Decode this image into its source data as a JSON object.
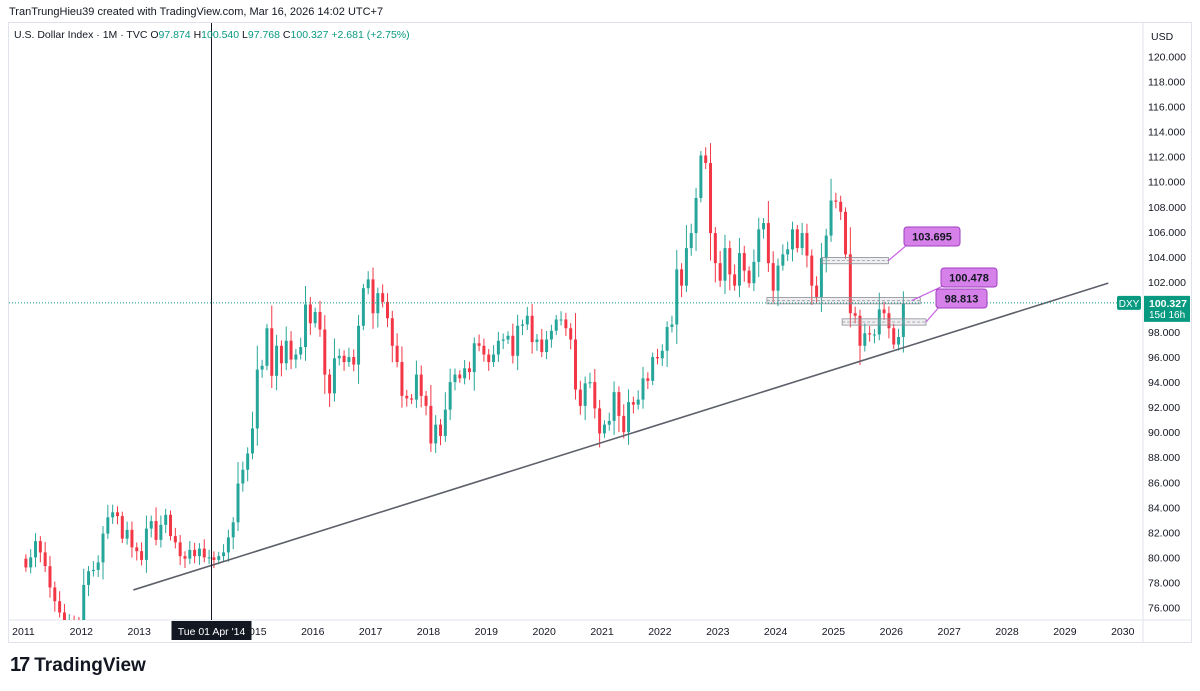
{
  "credit": "TranTrungHieu39 created with TradingView.com, Mar 16, 2026 14:02 UTC+7",
  "brand": "TradingView",
  "colors": {
    "up": "#26a69a",
    "down": "#f23645",
    "trendline": "#5d606b",
    "callout": "#c760e3",
    "last_price": "#089981"
  },
  "chart_data": {
    "type": "candlestick",
    "title": "U.S. Dollar Index · 1M · TVC",
    "ohlc": {
      "o_label": "O",
      "o": "97.874",
      "h_label": "H",
      "h": "100.540",
      "l_label": "L",
      "l": "97.768",
      "c_label": "C",
      "c": "100.327",
      "change": "+2.681 (+2.75%)"
    },
    "currency": "USD",
    "y_range": [
      75,
      121
    ],
    "y_ticks": [
      "76.000",
      "78.000",
      "80.000",
      "82.000",
      "84.000",
      "86.000",
      "88.000",
      "90.000",
      "92.000",
      "94.000",
      "96.000",
      "98.000",
      "100.000",
      "102.000",
      "104.000",
      "106.000",
      "108.000",
      "110.000",
      "112.000",
      "114.000",
      "116.000",
      "118.000",
      "120.000"
    ],
    "x_range": [
      2010.75,
      2030.35
    ],
    "x_ticks": [
      {
        "t": 2011,
        "label": "2011"
      },
      {
        "t": 2012,
        "label": "2012"
      },
      {
        "t": 2013,
        "label": "2013"
      },
      {
        "t": 2015,
        "label": "2015"
      },
      {
        "t": 2016,
        "label": "2016"
      },
      {
        "t": 2017,
        "label": "2017"
      },
      {
        "t": 2018,
        "label": "2018"
      },
      {
        "t": 2019,
        "label": "2019"
      },
      {
        "t": 2020,
        "label": "2020"
      },
      {
        "t": 2021,
        "label": "2021"
      },
      {
        "t": 2022,
        "label": "2022"
      },
      {
        "t": 2023,
        "label": "2023"
      },
      {
        "t": 2024,
        "label": "2024"
      },
      {
        "t": 2025,
        "label": "2025"
      },
      {
        "t": 2026,
        "label": "2026"
      },
      {
        "t": 2027,
        "label": "2027"
      },
      {
        "t": 2028,
        "label": "2028"
      },
      {
        "t": 2029,
        "label": "2029"
      },
      {
        "t": 2030,
        "label": "2030"
      }
    ],
    "crosshair": {
      "t": 2014.25,
      "label": "Tue 01 Apr '14"
    },
    "trendline": {
      "start": [
        2012.9,
        77.4
      ],
      "end": [
        2029.75,
        101.9
      ]
    },
    "last_price": {
      "symbol": "DXY",
      "value": 100.327,
      "label": "100.327",
      "countdown": "15d 16h"
    },
    "zones": [
      {
        "t0": 2024.8,
        "t1": 2025.95,
        "y0": 103.45,
        "y1": 103.95
      },
      {
        "t0": 2023.85,
        "t1": 2026.5,
        "y0": 100.25,
        "y1": 100.75
      },
      {
        "t0": 2025.15,
        "t1": 2026.6,
        "y0": 98.55,
        "y1": 99.05
      }
    ],
    "callouts": [
      {
        "label": "103.695",
        "value": 103.695,
        "anchor": [
          2025.95,
          103.7
        ]
      },
      {
        "label": "100.478",
        "value": 100.478,
        "anchor": [
          2026.35,
          100.5
        ]
      },
      {
        "label": "98.813",
        "value": 98.813,
        "anchor": [
          2026.6,
          98.8
        ]
      }
    ],
    "closes": [
      79.2,
      80.0,
      81.3,
      80.4,
      79.3,
      77.6,
      76.5,
      75.6,
      74.6,
      75.0,
      74.5,
      73.5,
      77.8,
      78.9,
      79.0,
      79.6,
      81.9,
      83.2,
      83.6,
      83.3,
      81.5,
      82.2,
      80.8,
      80.5,
      79.8,
      82.3,
      82.9,
      81.4,
      82.6,
      83.4,
      81.7,
      81.2,
      80.1,
      79.9,
      80.6,
      80.1,
      80.7,
      80.0,
      80.0,
      79.8,
      80.1,
      80.4,
      81.6,
      82.8,
      85.9,
      87.0,
      88.3,
      90.3,
      95.0,
      95.3,
      98.3,
      94.5,
      96.9,
      95.5,
      97.3,
      95.8,
      96.2,
      96.8,
      100.2,
      98.7,
      99.6,
      98.2,
      94.6,
      93.1,
      95.9,
      96.1,
      95.6,
      96.0,
      95.4,
      98.5,
      101.5,
      102.2,
      99.5,
      101.1,
      100.4,
      99.1,
      96.9,
      95.6,
      92.9,
      92.7,
      92.6,
      94.6,
      92.9,
      92.1,
      89.1,
      90.6,
      89.7,
      91.8,
      94.0,
      94.6,
      94.3,
      95.1,
      94.8,
      97.1,
      96.9,
      96.2,
      95.6,
      96.2,
      97.3,
      97.4,
      97.7,
      96.1,
      98.5,
      98.6,
      99.3,
      97.2,
      97.4,
      96.4,
      97.4,
      98.1,
      99.0,
      99.0,
      98.3,
      97.4,
      93.4,
      92.1,
      93.9,
      94.0,
      91.9,
      89.9,
      90.6,
      90.9,
      93.2,
      91.3,
      90.0,
      92.4,
      92.2,
      92.6,
      94.3,
      94.1,
      96.0,
      95.9,
      96.5,
      98.4,
      98.6,
      103.0,
      101.7,
      104.7,
      105.9,
      108.7,
      112.1,
      111.5,
      105.9,
      103.5,
      102.1,
      104.7,
      102.6,
      101.7,
      104.3,
      102.9,
      101.9,
      103.6,
      106.2,
      106.7,
      103.5,
      101.3,
      103.3,
      104.2,
      104.6,
      106.2,
      104.7,
      105.9,
      104.1,
      101.7,
      100.8,
      103.9,
      105.7,
      108.5,
      108.4,
      107.6,
      104.2,
      99.5,
      99.3,
      96.9,
      97.9,
      97.8,
      97.8,
      99.8,
      99.5,
      98.3,
      97.0,
      97.6,
      100.3
    ]
  }
}
